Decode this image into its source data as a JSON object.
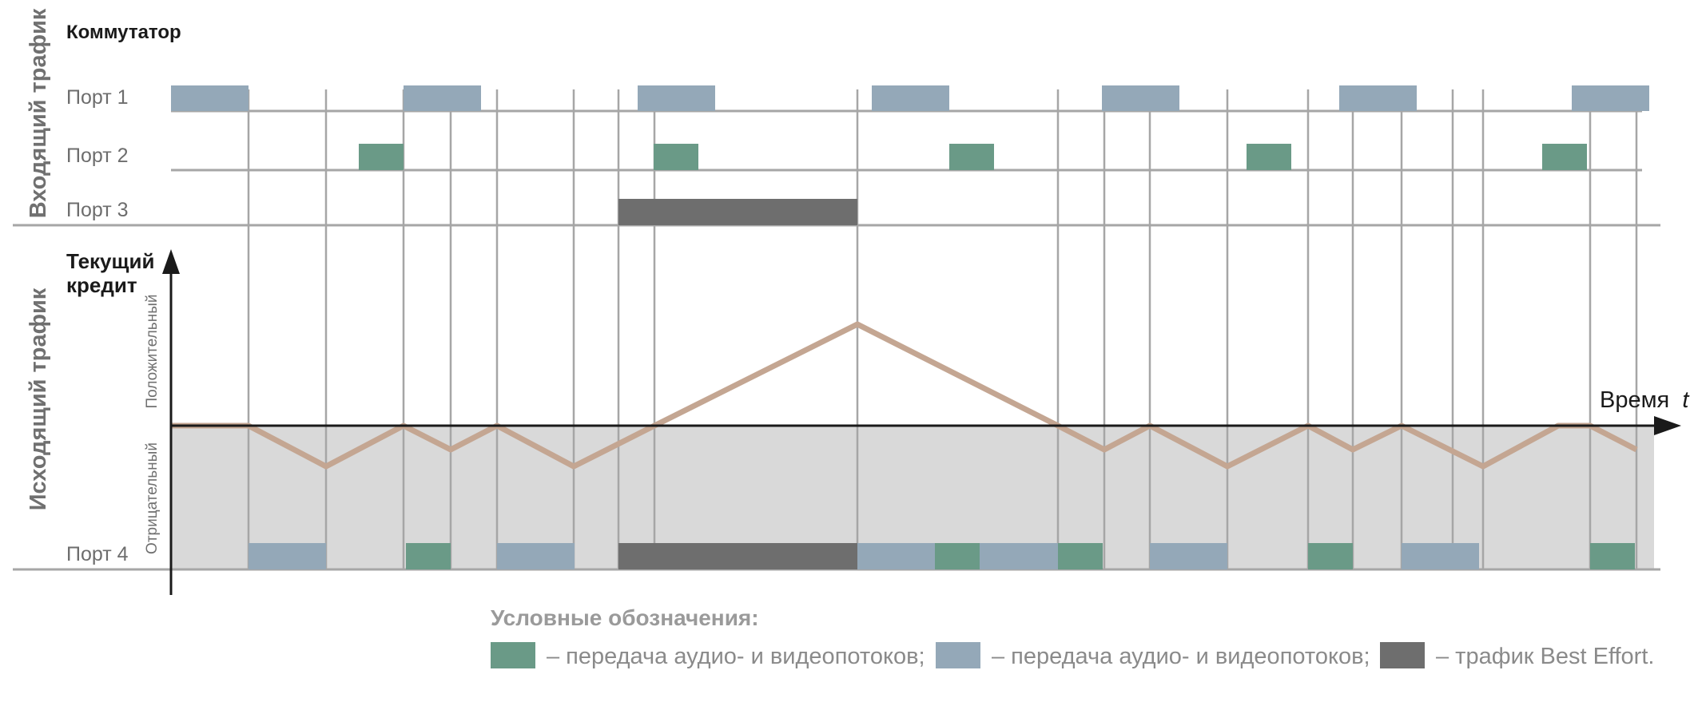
{
  "title": "Коммутатор",
  "side_labels": {
    "incoming": "Входящий трафик",
    "outgoing": "Исходящий трафик"
  },
  "ports": [
    "Порт 1",
    "Порт 2",
    "Порт 3",
    "Порт 4"
  ],
  "credit_axis": {
    "title_line1": "Текущий",
    "title_line2": "кредит",
    "positive": "Положительный",
    "negative": "Отрицательный"
  },
  "time_axis": {
    "label": "Время",
    "symbol": "t"
  },
  "legend": {
    "title": "Условные обозначения:",
    "items": [
      {
        "color": "#6a9a87",
        "text": "– передача аудио- и видеопотоков;"
      },
      {
        "color": "#94a8b8",
        "text": "– передача аудио- и видеопотоков;"
      },
      {
        "color": "#6e6e6e",
        "text": "– трафик Best Effort."
      }
    ]
  },
  "colors": {
    "green": "#6a9a87",
    "blue": "#94a8b8",
    "dark": "#6e6e6e",
    "credit_line": "#c4a692",
    "negative_area": "#d9d9d9",
    "grid": "#a6a6a6"
  }
}
